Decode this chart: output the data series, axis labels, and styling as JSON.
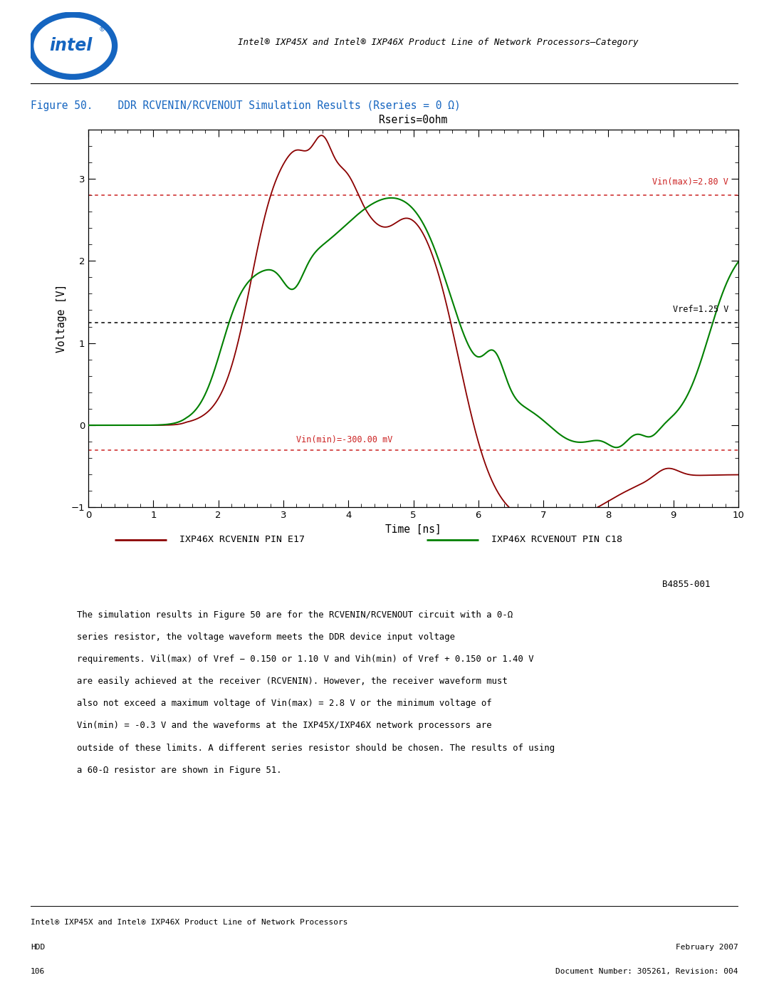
{
  "title": "Rseris=0ohm",
  "xlabel": "Time [ns]",
  "ylabel": "Voltage [V]",
  "xlim": [
    0,
    10
  ],
  "ylim": [
    -1,
    3.6
  ],
  "yticks": [
    -1,
    0,
    1,
    2,
    3
  ],
  "xticks": [
    0,
    1,
    2,
    3,
    4,
    5,
    6,
    7,
    8,
    9,
    10
  ],
  "vref_y": 1.25,
  "vref_label": "Vref=1.25 V",
  "vin_max_y": 2.8,
  "vin_max_label": "Vin(max)=2.80 V",
  "vin_min_y": -0.3,
  "vin_min_label": "Vin(min)=-300.00 mV",
  "legend_label1": "IXP46X RCVENIN PIN E17",
  "legend_label2": "IXP46X RCVENOUT PIN C18",
  "line1_color": "#8B0000",
  "line2_color": "#008000",
  "figure_number": "B4855-001",
  "header_text": "Intel® IXP45X and Intel® IXP46X Product Line of Network Processors—Category",
  "bg_color": "#ffffff",
  "plot_bg": "#ffffff",
  "footer_line1": "Intel® IXP45X and Intel® IXP46X Product Line of Network Processors",
  "footer_line2": "HDD",
  "footer_line3": "106",
  "footer_right1": "February 2007",
  "footer_right2": "Document Number: 305261, Revision: 004"
}
